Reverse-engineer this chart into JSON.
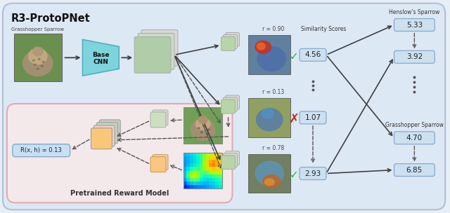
{
  "title": "R3-ProtoPNet",
  "fig_bg": "#e8eef6",
  "outer_bg": "#dce6f2",
  "outer_edge": "#b8c8e0",
  "label_input": "Grasshopper Sparrow",
  "label_base_cnn": "Base\nCNN",
  "label_pretrained": "Pretrained Reward Model",
  "label_reward": "R(x, h) = 0.13",
  "label_similarity": "Similarity Scores",
  "label_henslow": "Henslow's Sparrow",
  "label_grasshopper": "Grasshopper Sparrow",
  "r_values": [
    "r = 0.90",
    "r = 0.13",
    "r = 0.78"
  ],
  "sim_scores": [
    "4.56",
    "1.07",
    "2.93"
  ],
  "henslow_scores": [
    "5.33",
    "3.92"
  ],
  "grasshopper_scores": [
    "4.70",
    "6.85"
  ],
  "check_color": "#22bb22",
  "cross_color": "#cc2222",
  "cnn_color": "#7dd4dc",
  "cnn_edge": "#50b0bc",
  "feat_green": "#c8dfc0",
  "feat_green_dark": "#b0cca8",
  "feat_gray": "#d8d8d8",
  "proto_green_light": "#cce0c0",
  "proto_green": "#b8d4a8",
  "reward_bg": "#f5e8ea",
  "reward_edge": "#e0a8b0",
  "score_box_fill": "#cce0f0",
  "score_box_edge": "#88aacc",
  "reward_box_fill": "#c8e0f4",
  "reward_box_edge": "#80aacc",
  "orange_fill": "#f8c880",
  "orange_edge": "#d09840",
  "pink_fill": "#f0d0d8",
  "pink_edge": "#d0a0b0",
  "arrow_color": "#404040",
  "dashed_color": "#555555"
}
